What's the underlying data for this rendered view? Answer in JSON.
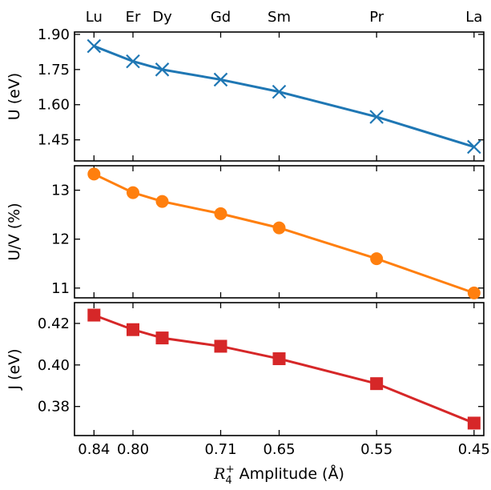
{
  "chart_data": {
    "type": "line",
    "x": [
      0.84,
      0.8,
      0.77,
      0.71,
      0.65,
      0.55,
      0.45
    ],
    "xlim": [
      0.86,
      0.44
    ],
    "x_ticks": [
      0.84,
      0.8,
      0.71,
      0.65,
      0.55,
      0.45
    ],
    "x_tick_labels": [
      "0.84",
      "0.80",
      "0.71",
      "0.65",
      "0.55",
      "0.45"
    ],
    "xlabel_symbol": "R",
    "xlabel_sub": "4",
    "xlabel_sup": "+",
    "xlabel_rest": " Amplitude (Å)",
    "top_categories": [
      "Lu",
      "Er",
      "Dy",
      "Gd",
      "Sm",
      "Pr",
      "La"
    ],
    "series": [
      {
        "values": [
          1.85,
          1.785,
          1.75,
          1.707,
          1.655,
          1.548,
          1.42
        ],
        "marker": "x",
        "color": "#1f77b4",
        "ylabel": "U (eV)",
        "ylim": [
          1.36,
          1.91
        ],
        "y_ticks": [
          1.45,
          1.6,
          1.75,
          1.9
        ],
        "y_tick_labels": [
          "1.45",
          "1.60",
          "1.75",
          "1.90"
        ]
      },
      {
        "values": [
          13.33,
          12.95,
          12.77,
          12.52,
          12.23,
          11.6,
          10.9
        ],
        "marker": "circle",
        "color": "#ff7f0e",
        "ylabel": "U/V (%)",
        "ylim": [
          10.8,
          13.5
        ],
        "y_ticks": [
          11,
          12,
          13
        ],
        "y_tick_labels": [
          "11",
          "12",
          "13"
        ]
      },
      {
        "values": [
          0.424,
          0.417,
          0.413,
          0.409,
          0.403,
          0.391,
          0.372
        ],
        "marker": "square",
        "color": "#d62728",
        "ylabel": "J (eV)",
        "ylim": [
          0.366,
          0.43
        ],
        "y_ticks": [
          0.38,
          0.4,
          0.42
        ],
        "y_tick_labels": [
          "0.38",
          "0.40",
          "0.42"
        ]
      }
    ]
  }
}
